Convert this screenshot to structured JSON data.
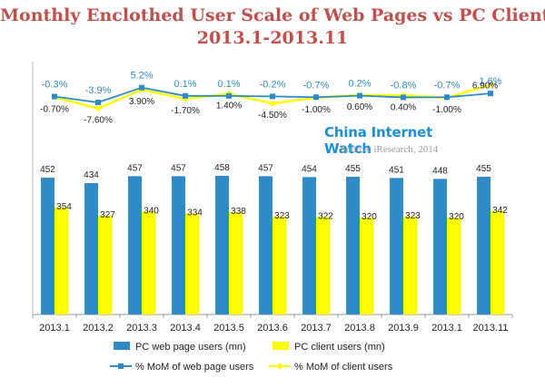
{
  "header": {
    "title_line1": "Monthly Enclothed User Scale of Web Pages vs PC Client",
    "title_line2": "2013.1-2013.11"
  },
  "watermark": {
    "brand": "China Internet Watch",
    "source": "Source: iResearch, 2014"
  },
  "colors": {
    "title": "#c0504d",
    "web": "#2e8bc9",
    "client": "#ffff00",
    "web_mom_label": "#2e8bc9",
    "brand": "#1e8fd6"
  },
  "chart_data": [
    {
      "type": "bar",
      "categories": [
        "2013.1",
        "2013.2",
        "2013.3",
        "2013.4",
        "2013.5",
        "2013.6",
        "2013.7",
        "2013.8",
        "2013.9",
        "2013.1",
        "2013.11"
      ],
      "series": [
        {
          "name": "PC web page users (mn)",
          "values": [
            452,
            434,
            457,
            457,
            458,
            457,
            454,
            455,
            451,
            448,
            455
          ]
        },
        {
          "name": "PC client users (mn)",
          "values": [
            354,
            327,
            340,
            334,
            338,
            323,
            322,
            320,
            323,
            320,
            342
          ]
        }
      ],
      "ylim": [
        0,
        600
      ],
      "grid": false
    },
    {
      "type": "line",
      "categories": [
        "2013.1",
        "2013.2",
        "2013.3",
        "2013.4",
        "2013.5",
        "2013.6",
        "2013.7",
        "2013.8",
        "2013.9",
        "2013.1",
        "2013.11"
      ],
      "series": [
        {
          "name": "% MoM of web page users",
          "values": [
            -0.3,
            -3.9,
            5.2,
            0.1,
            0.1,
            -0.2,
            -0.7,
            0.2,
            -0.8,
            -0.7,
            1.6
          ],
          "labels": [
            "-0.3%",
            "-3.9%",
            "5.2%",
            "0.1%",
            "0.1%",
            "-0.2%",
            "-0.7%",
            "0.2%",
            "-0.8%",
            "-0.7%",
            "1.6%"
          ]
        },
        {
          "name": "% MoM of client users",
          "values": [
            -0.7,
            -7.6,
            3.9,
            -1.7,
            1.4,
            -4.5,
            -1.0,
            0.6,
            0.4,
            -1.0,
            6.9
          ],
          "labels": [
            "-0.70%",
            "-7.60%",
            "3.90%",
            "-1.70%",
            "1.40%",
            "-4.50%",
            "-1.00%",
            "0.60%",
            "0.40%",
            "-1.00%",
            "6.90%"
          ]
        }
      ]
    }
  ],
  "legend": {
    "items": [
      {
        "label": "PC web page users (mn)",
        "kind": "box",
        "color": "#2e8bc9"
      },
      {
        "label": "PC client users (mn)",
        "kind": "box",
        "color": "#ffff00"
      },
      {
        "label": "% MoM of web page users",
        "kind": "line-marker",
        "color": "#2e8bc9"
      },
      {
        "label": "% MoM of client users",
        "kind": "line-marker",
        "color": "#ffff00"
      }
    ]
  }
}
